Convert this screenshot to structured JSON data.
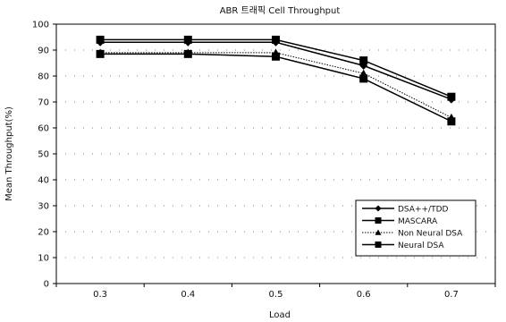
{
  "chart_data": {
    "type": "line",
    "title": "ABR 트래픽 Cell Throughput",
    "xlabel": "Load",
    "ylabel": "Mean Throughput(%)",
    "x": [
      0.3,
      0.4,
      0.5,
      0.6,
      0.7
    ],
    "x_tick_labels": [
      "0.3",
      "0.4",
      "0.5",
      "0.6",
      "0.7"
    ],
    "ylim": [
      0,
      100
    ],
    "y_ticks": [
      0,
      10,
      20,
      30,
      40,
      50,
      60,
      70,
      80,
      90,
      100
    ],
    "y_tick_labels": [
      "0",
      "10",
      "20",
      "30",
      "40",
      "50",
      "60",
      "70",
      "80",
      "90",
      "100"
    ],
    "grid": "horizontal dotted",
    "legend_position": "bottom-right",
    "series": [
      {
        "name": "DSA++/TDD",
        "values": [
          93,
          93,
          93,
          84,
          71
        ],
        "marker": "diamond",
        "line": "solid"
      },
      {
        "name": "MASCARA",
        "values": [
          94,
          94,
          94,
          86,
          72
        ],
        "marker": "square",
        "line": "solid"
      },
      {
        "name": "Non Neural DSA",
        "values": [
          89,
          89,
          89,
          81,
          64
        ],
        "marker": "triangle",
        "line": "dotted"
      },
      {
        "name": "Neural DSA",
        "values": [
          88.5,
          88.5,
          87.5,
          79,
          62.5
        ],
        "marker": "square",
        "line": "solid"
      }
    ]
  }
}
